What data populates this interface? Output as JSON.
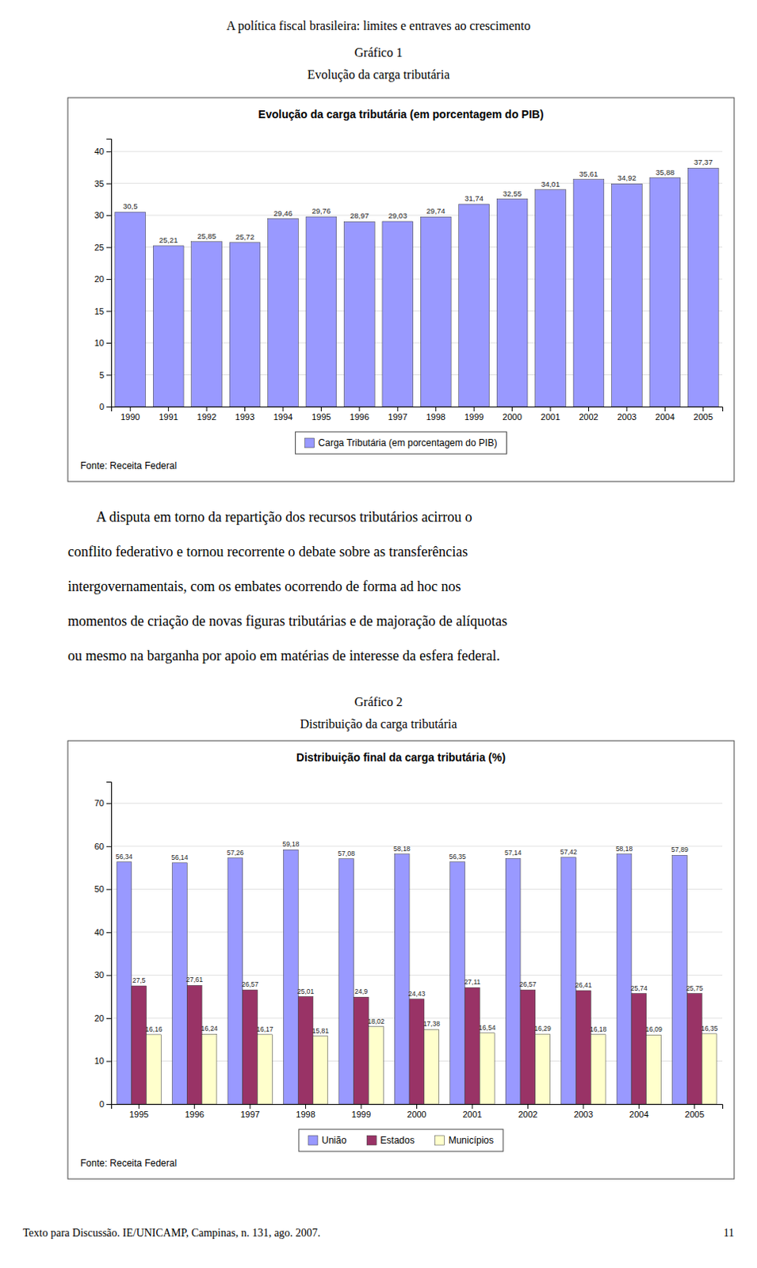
{
  "page_title": "A política fiscal brasileira: limites e entraves ao crescimento",
  "paragraph": [
    "A disputa em torno da repartição dos recursos tributários acirrou o",
    "conflito federativo e tornou recorrente o debate sobre as transferências",
    "intergovernamentais, com os embates ocorrendo de forma ad hoc nos",
    "momentos de criação de novas figuras tributárias e de majoração de alíquotas",
    "ou mesmo na barganha por apoio em matérias de interesse da esfera federal."
  ],
  "footer_text": "Texto para Discussão. IE/UNICAMP, Campinas, n. 131, ago. 2007.",
  "footer_page": "11",
  "chart_data": [
    {
      "type": "bar",
      "caption": [
        "Gráfico 1",
        "Evolução da carga tributária"
      ],
      "title": "Evolução da carga tributária (em porcentagem do PIB)",
      "source": "Fonte: Receita Federal",
      "categories": [
        "1990",
        "1991",
        "1992",
        "1993",
        "1994",
        "1995",
        "1996",
        "1997",
        "1998",
        "1999",
        "2000",
        "2001",
        "2002",
        "2003",
        "2004",
        "2005"
      ],
      "series": [
        {
          "name": "Carga Tributária (em porcentagem do PIB)",
          "color": "#9999ff",
          "values": [
            30.5,
            25.21,
            25.85,
            25.72,
            29.46,
            29.76,
            28.97,
            29.03,
            29.74,
            31.74,
            32.55,
            34.01,
            35.61,
            34.92,
            35.88,
            37.37
          ],
          "value_labels": [
            "30,5",
            "25,21",
            "25,85",
            "25,72",
            "29,46",
            "29,76",
            "28,97",
            "29,03",
            "29,74",
            "31,74",
            "32,55",
            "34,01",
            "35,61",
            "34,92",
            "35,88",
            "37,37"
          ]
        }
      ],
      "ylim": [
        0,
        42
      ],
      "yticks": [
        0,
        5,
        10,
        15,
        20,
        25,
        30,
        35,
        40
      ],
      "grid": true,
      "data_labels": true,
      "legend": "bottom"
    },
    {
      "type": "bar",
      "caption": [
        "Gráfico 2",
        "Distribuição da carga tributária"
      ],
      "title": "Distribuição final da carga tributária (%)",
      "source": "Fonte: Receita Federal",
      "categories": [
        "1995",
        "1996",
        "1997",
        "1998",
        "1999",
        "2000",
        "2001",
        "2002",
        "2003",
        "2004",
        "2005"
      ],
      "series": [
        {
          "name": "União",
          "color": "#9999ff",
          "values": [
            56.34,
            56.14,
            57.26,
            59.18,
            57.08,
            58.18,
            56.35,
            57.14,
            57.42,
            58.18,
            57.89
          ],
          "value_labels": [
            "56,34",
            "56,14",
            "57,26",
            "59,18",
            "57,08",
            "58,18",
            "56,35",
            "57,14",
            "57,42",
            "58,18",
            "57,89"
          ]
        },
        {
          "name": "Estados",
          "color": "#993366",
          "values": [
            27.5,
            27.61,
            26.57,
            25.01,
            24.9,
            24.43,
            27.11,
            26.57,
            26.41,
            25.74,
            25.75
          ],
          "value_labels": [
            "27,5",
            "27,61",
            "26,57",
            "25,01",
            "24,9",
            "24,43",
            "27,11",
            "26,57",
            "26,41",
            "25,74",
            "25,75"
          ]
        },
        {
          "name": "Municípios",
          "color": "#ffffcc",
          "values": [
            16.16,
            16.24,
            16.17,
            15.81,
            18.02,
            17.38,
            16.54,
            16.29,
            16.18,
            16.09,
            16.35
          ],
          "value_labels": [
            "16,16",
            "16,24",
            "16,17",
            "15,81",
            "18,02",
            "17,38",
            "16,54",
            "16,29",
            "16,18",
            "16,09",
            "16,35"
          ]
        }
      ],
      "ylim": [
        0,
        75
      ],
      "yticks": [
        0,
        10,
        20,
        30,
        40,
        50,
        60,
        70
      ],
      "grid": true,
      "data_labels": true,
      "legend": "bottom"
    }
  ]
}
